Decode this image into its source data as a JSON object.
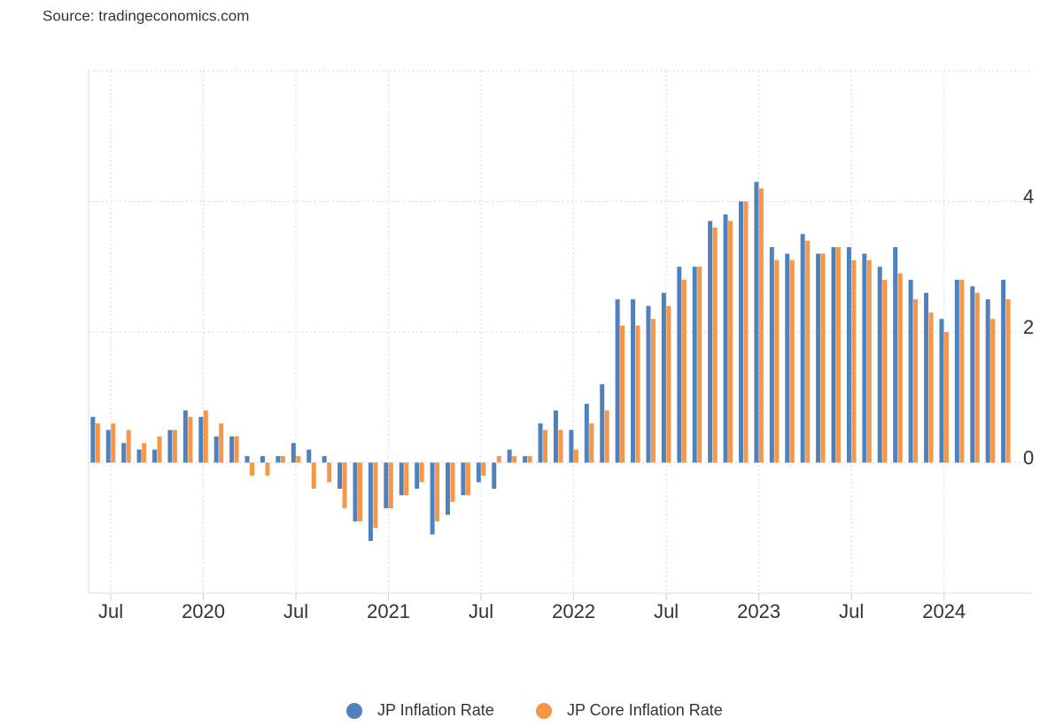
{
  "chart_data": {
    "type": "bar",
    "source": "Source: tradingeconomics.com",
    "x": [
      "2019-06",
      "2019-07",
      "2019-08",
      "2019-09",
      "2019-10",
      "2019-11",
      "2019-12",
      "2020-01",
      "2020-02",
      "2020-03",
      "2020-04",
      "2020-05",
      "2020-06",
      "2020-07",
      "2020-08",
      "2020-09",
      "2020-10",
      "2020-11",
      "2020-12",
      "2021-01",
      "2021-02",
      "2021-03",
      "2021-04",
      "2021-05",
      "2021-06",
      "2021-07",
      "2021-08",
      "2021-09",
      "2021-10",
      "2021-11",
      "2021-12",
      "2022-01",
      "2022-02",
      "2022-03",
      "2022-04",
      "2022-05",
      "2022-06",
      "2022-07",
      "2022-08",
      "2022-09",
      "2022-10",
      "2022-11",
      "2022-12",
      "2023-01",
      "2023-02",
      "2023-03",
      "2023-04",
      "2023-05",
      "2023-06",
      "2023-07",
      "2023-08",
      "2023-09",
      "2023-10",
      "2023-11",
      "2023-12",
      "2024-01",
      "2024-02",
      "2024-03",
      "2024-04",
      "2024-05"
    ],
    "series": [
      {
        "name": "JP Inflation Rate",
        "color": "#4f81bd",
        "values": [
          0.7,
          0.5,
          0.3,
          0.2,
          0.2,
          0.5,
          0.8,
          0.7,
          0.4,
          0.4,
          0.1,
          0.1,
          0.1,
          0.3,
          0.2,
          0.1,
          -0.4,
          -0.9,
          -1.2,
          -0.7,
          -0.5,
          -0.4,
          -1.1,
          -0.8,
          -0.5,
          -0.3,
          -0.4,
          0.2,
          0.1,
          0.6,
          0.8,
          0.5,
          0.9,
          1.2,
          2.5,
          2.5,
          2.4,
          2.6,
          3.0,
          3.0,
          3.7,
          3.8,
          4.0,
          4.3,
          3.3,
          3.2,
          3.5,
          3.2,
          3.3,
          3.3,
          3.2,
          3.0,
          3.3,
          2.8,
          2.6,
          2.2,
          2.8,
          2.7,
          2.5,
          2.8
        ]
      },
      {
        "name": "JP Core Inflation Rate",
        "color": "#f79646",
        "values": [
          0.6,
          0.6,
          0.5,
          0.3,
          0.4,
          0.5,
          0.7,
          0.8,
          0.6,
          0.4,
          -0.2,
          -0.2,
          0.1,
          0.1,
          -0.4,
          -0.3,
          -0.7,
          -0.9,
          -1.0,
          -0.7,
          -0.5,
          -0.3,
          -0.9,
          -0.6,
          -0.5,
          -0.2,
          0.1,
          0.1,
          0.1,
          0.5,
          0.5,
          0.2,
          0.6,
          0.8,
          2.1,
          2.1,
          2.2,
          2.4,
          2.8,
          3.0,
          3.6,
          3.7,
          4.0,
          4.2,
          3.1,
          3.1,
          3.4,
          3.2,
          3.3,
          3.1,
          3.1,
          2.8,
          2.9,
          2.5,
          2.3,
          2.0,
          2.8,
          2.6,
          2.2,
          2.5
        ]
      }
    ],
    "xticks": [
      {
        "value": "2019-07",
        "label": "Jul"
      },
      {
        "value": "2020-01",
        "label": "2020"
      },
      {
        "value": "2020-07",
        "label": "Jul"
      },
      {
        "value": "2021-01",
        "label": "2021"
      },
      {
        "value": "2021-07",
        "label": "Jul"
      },
      {
        "value": "2022-01",
        "label": "2022"
      },
      {
        "value": "2022-07",
        "label": "Jul"
      },
      {
        "value": "2023-01",
        "label": "2023"
      },
      {
        "value": "2023-07",
        "label": "Jul"
      },
      {
        "value": "2024-01",
        "label": "2024"
      }
    ],
    "ylim": [
      -2,
      6
    ],
    "yticks": [
      0,
      2,
      4
    ],
    "grid": true
  }
}
